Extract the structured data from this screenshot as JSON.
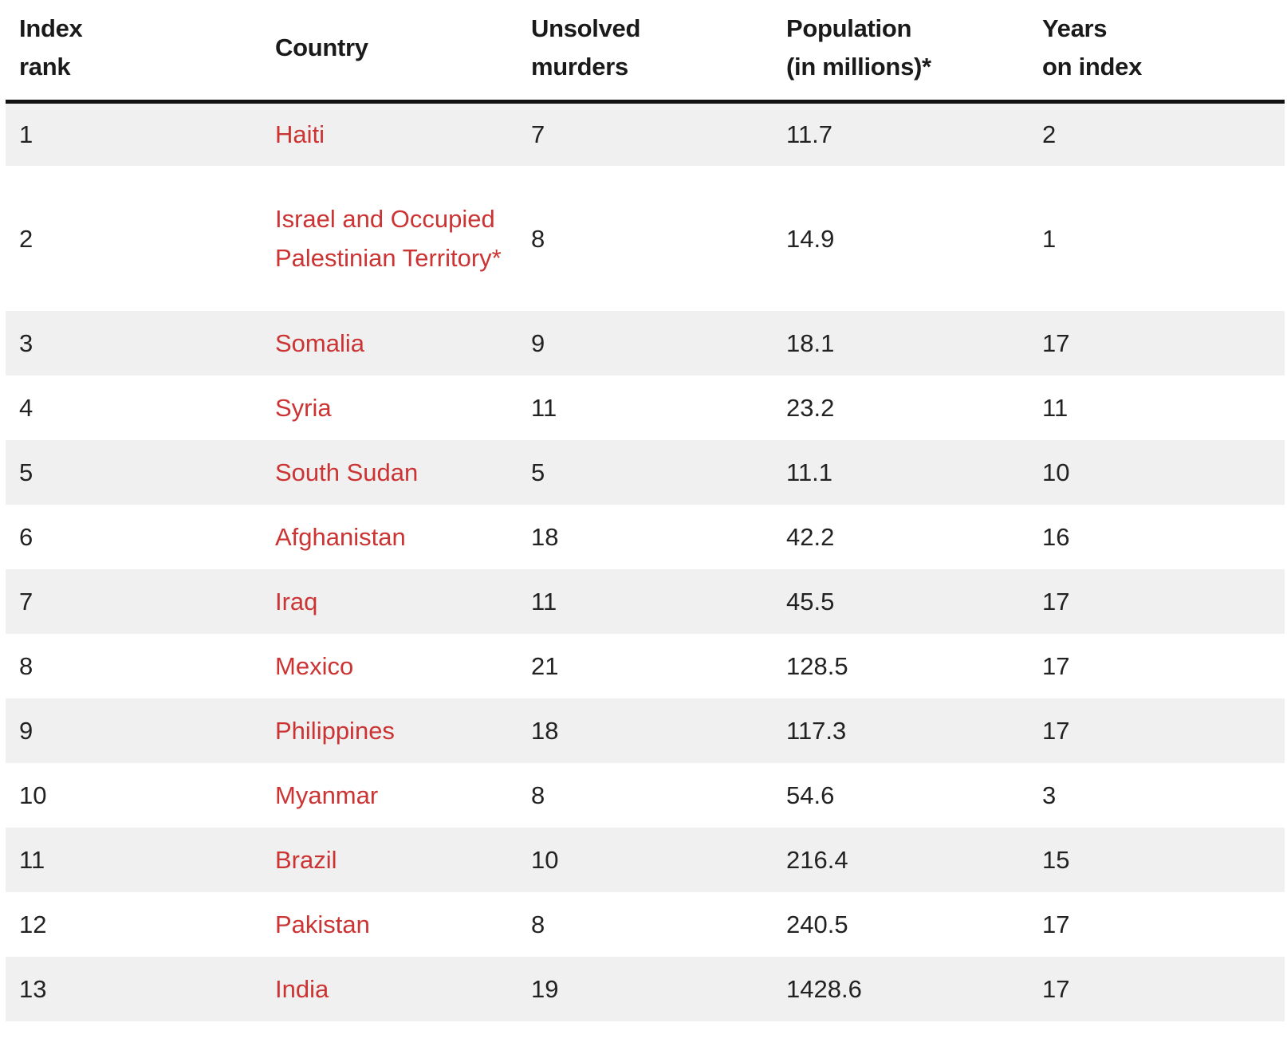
{
  "table": {
    "headers": {
      "rank": [
        "Index",
        "rank"
      ],
      "country": [
        "Country"
      ],
      "murders": [
        "Unsolved",
        "murders"
      ],
      "population": [
        "Population",
        "(in millions)*"
      ],
      "years": [
        "Years",
        "on index"
      ]
    },
    "link_color": "#cc3333",
    "stripe_color": "#f0f0f0",
    "rows": [
      {
        "rank": "1",
        "country": "Haiti",
        "murders": "7",
        "population": "11.7",
        "years": "2"
      },
      {
        "rank": "2",
        "country": "Israel and Occupied Palestinian Territory*",
        "murders": "8",
        "population": "14.9",
        "years": "1"
      },
      {
        "rank": "3",
        "country": "Somalia",
        "murders": "9",
        "population": "18.1",
        "years": "17"
      },
      {
        "rank": "4",
        "country": "Syria",
        "murders": "11",
        "population": "23.2",
        "years": "11"
      },
      {
        "rank": "5",
        "country": "South Sudan",
        "murders": "5",
        "population": "11.1",
        "years": "10"
      },
      {
        "rank": "6",
        "country": "Afghanistan",
        "murders": "18",
        "population": "42.2",
        "years": "16"
      },
      {
        "rank": "7",
        "country": "Iraq",
        "murders": "11",
        "population": "45.5",
        "years": "17"
      },
      {
        "rank": "8",
        "country": "Mexico",
        "murders": "21",
        "population": "128.5",
        "years": "17"
      },
      {
        "rank": "9",
        "country": "Philippines",
        "murders": "18",
        "population": "117.3",
        "years": "17"
      },
      {
        "rank": "10",
        "country": "Myanmar",
        "murders": "8",
        "population": "54.6",
        "years": "3"
      },
      {
        "rank": "11",
        "country": "Brazil",
        "murders": "10",
        "population": "216.4",
        "years": "15"
      },
      {
        "rank": "12",
        "country": "Pakistan",
        "murders": "8",
        "population": "240.5",
        "years": "17"
      },
      {
        "rank": "13",
        "country": "India",
        "murders": "19",
        "population": "1428.6",
        "years": "17"
      }
    ]
  }
}
